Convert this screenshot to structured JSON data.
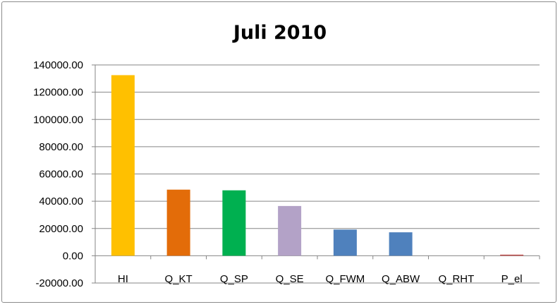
{
  "chart_data": {
    "type": "bar",
    "title": "Juli 2010",
    "xlabel": "",
    "ylabel": "",
    "ylim": [
      -20000,
      140000
    ],
    "yticks": [
      140000,
      120000,
      100000,
      80000,
      60000,
      40000,
      20000,
      0,
      -20000
    ],
    "ytick_labels": [
      "140000.00",
      "120000.00",
      "100000.00",
      "80000.00",
      "60000.00",
      "40000.00",
      "20000.00",
      "0.00",
      "-20000.00"
    ],
    "categories": [
      "HI",
      "Q_KT",
      "Q_SP",
      "Q_SE",
      "Q_FWM",
      "Q_ABW",
      "Q_RHT",
      "P_el"
    ],
    "values": [
      132500,
      48500,
      48000,
      36500,
      19200,
      17200,
      0,
      800
    ],
    "colors": [
      "#FFC000",
      "#E36C09",
      "#00B050",
      "#B3A2C7",
      "#4F81BD",
      "#4F81BD",
      "#4F81BD",
      "#C0504D"
    ],
    "grid": true,
    "legend": "none"
  }
}
